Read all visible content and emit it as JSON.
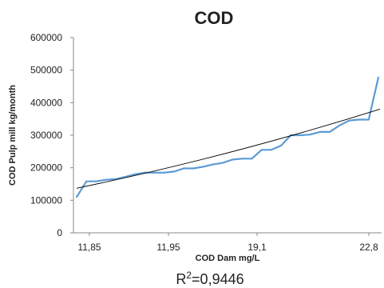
{
  "chart_data": {
    "type": "line",
    "title": "COD",
    "xlabel": "COD Dam mg/L",
    "ylabel": "COD Pulp mill kg/month",
    "x_tick_labels": [
      "11,85",
      "11,95",
      "19,1",
      "22,8"
    ],
    "ylim": [
      0,
      600000
    ],
    "y_ticks": [
      0,
      100000,
      200000,
      300000,
      400000,
      500000,
      600000
    ],
    "grid": false,
    "annotation": {
      "prefix": "R",
      "sup": "2",
      "value": "=0,9446"
    },
    "series_color": "#5b9bd5",
    "trend_color": "#000000",
    "series": [
      {
        "values": [
          110000,
          158000,
          158000,
          163000,
          165000,
          172000,
          180000,
          185000,
          185000,
          185000,
          188000,
          198000,
          198000,
          203000,
          210000,
          215000,
          225000,
          228000,
          228000,
          255000,
          255000,
          268000,
          300000,
          300000,
          302000,
          310000,
          310000,
          330000,
          345000,
          348000,
          348000,
          478000
        ]
      }
    ],
    "trendline": {
      "start": 137000,
      "end": 380000
    }
  }
}
